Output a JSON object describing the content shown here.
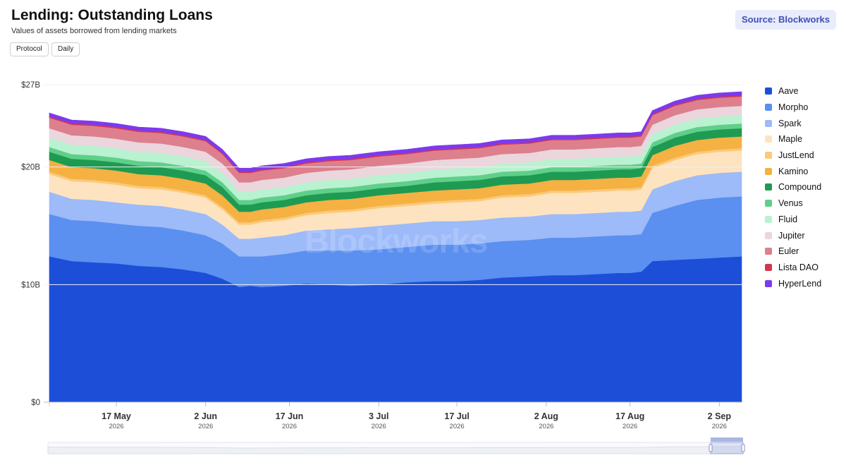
{
  "header": {
    "title": "Lending: Outstanding Loans",
    "subtitle": "Values of assets borrowed from lending markets",
    "buttons": [
      "Protocol",
      "Daily"
    ],
    "source": "Source: Blockworks"
  },
  "watermark": "Blockworks",
  "colors": {
    "Aave": "#1d4ed8",
    "Morpho": "#5b8ff0",
    "Spark": "#9dbaf9",
    "Maple": "#fde3bf",
    "JustLend": "#fbc97a",
    "Kamino": "#f5b142",
    "Compound": "#1f9a52",
    "Venus": "#5fcf8a",
    "Fluid": "#b9f2d0",
    "Jupiter": "#ead6dc",
    "Euler": "#dd7f8d",
    "Lista DAO": "#d2374f",
    "HyperLend": "#7c3aed"
  },
  "chart_data": {
    "type": "area",
    "stacked": true,
    "title": "Lending: Outstanding Loans",
    "subtitle": "Values of assets borrowed from lending markets",
    "frequency": "Daily",
    "y_ticks": [
      "$0",
      "$10B",
      "$20B",
      "$27B"
    ],
    "y_tick_values": [
      0,
      10,
      20,
      27
    ],
    "ylim": [
      0,
      27
    ],
    "y_unit": "$B",
    "x_ticks": [
      {
        "date": "2026-05-17",
        "label": "17 May",
        "year": "2026"
      },
      {
        "date": "2026-06-02",
        "label": "2 Jun",
        "year": "2026"
      },
      {
        "date": "2026-06-17",
        "label": "17 Jun",
        "year": "2026"
      },
      {
        "date": "2026-07-03",
        "label": "3 Jul",
        "year": "2026"
      },
      {
        "date": "2026-07-17",
        "label": "17 Jul",
        "year": "2026"
      },
      {
        "date": "2026-08-02",
        "label": "2 Aug",
        "year": "2026"
      },
      {
        "date": "2026-08-17",
        "label": "17 Aug",
        "year": "2026"
      },
      {
        "date": "2026-09-02",
        "label": "2 Sep",
        "year": "2026"
      }
    ],
    "x": [
      "2026-05-05",
      "2026-05-09",
      "2026-05-13",
      "2026-05-17",
      "2026-05-21",
      "2026-05-25",
      "2026-05-29",
      "2026-06-02",
      "2026-06-05",
      "2026-06-08",
      "2026-06-10",
      "2026-06-12",
      "2026-06-16",
      "2026-06-20",
      "2026-06-24",
      "2026-06-28",
      "2026-07-03",
      "2026-07-08",
      "2026-07-13",
      "2026-07-17",
      "2026-07-21",
      "2026-07-25",
      "2026-07-30",
      "2026-08-03",
      "2026-08-07",
      "2026-08-11",
      "2026-08-15",
      "2026-08-17",
      "2026-08-19",
      "2026-08-21",
      "2026-08-25",
      "2026-08-29",
      "2026-09-02",
      "2026-09-06"
    ],
    "series": [
      {
        "name": "Aave",
        "values": [
          12.4,
          12.0,
          11.9,
          11.8,
          11.6,
          11.5,
          11.3,
          11.0,
          10.5,
          9.8,
          9.9,
          9.8,
          9.9,
          10.1,
          10.0,
          9.9,
          10.0,
          10.2,
          10.3,
          10.3,
          10.4,
          10.6,
          10.7,
          10.8,
          10.8,
          10.9,
          11.0,
          11.0,
          11.1,
          12.0,
          12.1,
          12.2,
          12.3,
          12.4
        ]
      },
      {
        "name": "Morpho",
        "values": [
          3.6,
          3.5,
          3.5,
          3.4,
          3.4,
          3.4,
          3.3,
          3.2,
          3.0,
          2.6,
          2.5,
          2.6,
          2.7,
          2.8,
          2.9,
          3.0,
          3.0,
          3.0,
          3.1,
          3.1,
          3.1,
          3.1,
          3.1,
          3.2,
          3.2,
          3.2,
          3.2,
          3.2,
          3.2,
          4.1,
          4.6,
          5.0,
          5.1,
          5.1
        ]
      },
      {
        "name": "Spark",
        "values": [
          1.9,
          1.8,
          1.8,
          1.8,
          1.8,
          1.8,
          1.8,
          1.8,
          1.6,
          1.5,
          1.5,
          1.6,
          1.6,
          1.7,
          1.8,
          1.9,
          2.0,
          2.0,
          2.0,
          2.0,
          2.0,
          2.0,
          2.0,
          2.0,
          2.0,
          2.0,
          2.0,
          2.0,
          2.0,
          2.0,
          2.1,
          2.1,
          2.1,
          2.1
        ]
      },
      {
        "name": "Maple",
        "values": [
          1.5,
          1.5,
          1.5,
          1.5,
          1.4,
          1.4,
          1.4,
          1.4,
          1.3,
          1.2,
          1.2,
          1.3,
          1.3,
          1.3,
          1.4,
          1.4,
          1.5,
          1.5,
          1.5,
          1.6,
          1.6,
          1.7,
          1.7,
          1.8,
          1.8,
          1.8,
          1.8,
          1.8,
          1.8,
          1.8,
          1.8,
          1.8,
          1.8,
          1.8
        ]
      },
      {
        "name": "JustLend",
        "values": [
          0.2,
          0.2,
          0.2,
          0.2,
          0.2,
          0.2,
          0.2,
          0.2,
          0.2,
          0.2,
          0.2,
          0.2,
          0.2,
          0.2,
          0.2,
          0.2,
          0.2,
          0.2,
          0.2,
          0.2,
          0.2,
          0.2,
          0.2,
          0.2,
          0.2,
          0.2,
          0.2,
          0.2,
          0.2,
          0.2,
          0.2,
          0.2,
          0.2,
          0.2
        ]
      },
      {
        "name": "Kamino",
        "values": [
          1.0,
          1.0,
          1.0,
          1.0,
          1.0,
          1.0,
          1.0,
          1.0,
          1.0,
          0.9,
          0.9,
          0.9,
          0.9,
          0.9,
          0.9,
          0.9,
          0.9,
          0.9,
          0.9,
          0.9,
          0.9,
          0.9,
          0.9,
          0.9,
          0.9,
          0.9,
          0.9,
          0.9,
          0.9,
          0.9,
          1.0,
          1.0,
          1.0,
          1.0
        ]
      },
      {
        "name": "Compound",
        "values": [
          0.7,
          0.7,
          0.7,
          0.7,
          0.7,
          0.7,
          0.7,
          0.7,
          0.7,
          0.6,
          0.6,
          0.6,
          0.6,
          0.6,
          0.6,
          0.6,
          0.6,
          0.6,
          0.7,
          0.7,
          0.7,
          0.7,
          0.7,
          0.7,
          0.7,
          0.7,
          0.7,
          0.7,
          0.7,
          0.7,
          0.7,
          0.7,
          0.7,
          0.7
        ]
      },
      {
        "name": "Venus",
        "values": [
          0.4,
          0.4,
          0.4,
          0.4,
          0.4,
          0.4,
          0.4,
          0.4,
          0.4,
          0.4,
          0.4,
          0.4,
          0.4,
          0.4,
          0.4,
          0.4,
          0.4,
          0.4,
          0.4,
          0.4,
          0.4,
          0.4,
          0.4,
          0.4,
          0.4,
          0.4,
          0.4,
          0.4,
          0.4,
          0.4,
          0.4,
          0.4,
          0.4,
          0.4
        ]
      },
      {
        "name": "Fluid",
        "values": [
          0.8,
          0.8,
          0.8,
          0.8,
          0.8,
          0.8,
          0.8,
          0.8,
          0.8,
          0.7,
          0.7,
          0.7,
          0.7,
          0.7,
          0.7,
          0.7,
          0.7,
          0.7,
          0.7,
          0.7,
          0.7,
          0.7,
          0.7,
          0.7,
          0.7,
          0.7,
          0.7,
          0.7,
          0.7,
          0.7,
          0.7,
          0.7,
          0.7,
          0.7
        ]
      },
      {
        "name": "Jupiter",
        "values": [
          0.8,
          0.8,
          0.8,
          0.8,
          0.8,
          0.8,
          0.8,
          0.8,
          0.8,
          0.8,
          0.8,
          0.8,
          0.8,
          0.8,
          0.8,
          0.8,
          0.8,
          0.8,
          0.8,
          0.8,
          0.8,
          0.8,
          0.8,
          0.8,
          0.8,
          0.8,
          0.8,
          0.8,
          0.8,
          0.8,
          0.8,
          0.8,
          0.8,
          0.8
        ]
      },
      {
        "name": "Euler",
        "values": [
          0.9,
          0.9,
          0.9,
          0.9,
          0.9,
          0.9,
          0.9,
          0.9,
          0.8,
          0.8,
          0.8,
          0.8,
          0.8,
          0.8,
          0.8,
          0.8,
          0.8,
          0.8,
          0.8,
          0.8,
          0.8,
          0.8,
          0.8,
          0.8,
          0.8,
          0.8,
          0.8,
          0.8,
          0.8,
          0.8,
          0.8,
          0.8,
          0.8,
          0.8
        ]
      },
      {
        "name": "Lista DAO",
        "values": [
          0.1,
          0.1,
          0.1,
          0.1,
          0.1,
          0.1,
          0.1,
          0.1,
          0.1,
          0.1,
          0.1,
          0.1,
          0.1,
          0.1,
          0.1,
          0.1,
          0.1,
          0.1,
          0.1,
          0.1,
          0.1,
          0.1,
          0.1,
          0.1,
          0.1,
          0.1,
          0.1,
          0.1,
          0.1,
          0.1,
          0.1,
          0.1,
          0.1,
          0.1
        ]
      },
      {
        "name": "HyperLend",
        "values": [
          0.3,
          0.3,
          0.3,
          0.3,
          0.3,
          0.3,
          0.3,
          0.3,
          0.3,
          0.3,
          0.3,
          0.3,
          0.3,
          0.3,
          0.3,
          0.3,
          0.3,
          0.3,
          0.3,
          0.3,
          0.3,
          0.3,
          0.3,
          0.3,
          0.3,
          0.3,
          0.3,
          0.3,
          0.3,
          0.3,
          0.3,
          0.3,
          0.3,
          0.3
        ]
      }
    ],
    "legend": [
      "Aave",
      "Morpho",
      "Spark",
      "Maple",
      "JustLend",
      "Kamino",
      "Compound",
      "Venus",
      "Fluid",
      "Jupiter",
      "Euler",
      "Lista DAO",
      "HyperLend"
    ],
    "legend_placement": "right",
    "grid": false,
    "navigator": true
  }
}
